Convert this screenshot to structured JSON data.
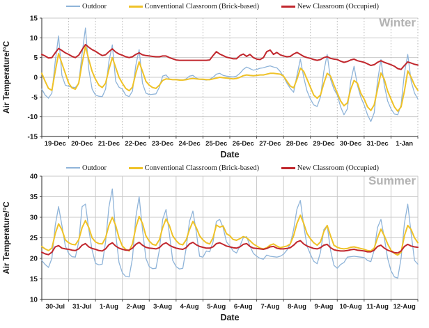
{
  "chart_data": [
    {
      "type": "line",
      "panel": "winter",
      "watermark": "Winter",
      "xlabel": "Date",
      "ylabel": "Air Temperature/°C",
      "ylim": [
        -15,
        15
      ],
      "yticks": [
        15,
        10,
        5,
        0,
        -5,
        -10,
        -15
      ],
      "grid_vertical": "dotted",
      "legend_position": "top",
      "points_per_day": 8,
      "categories": [
        "19-Dec",
        "20-Dec",
        "21-Dec",
        "22-Dec",
        "23-Dec",
        "24-Dec",
        "25-Dec",
        "26-Dec",
        "27-Dec",
        "28-Dec",
        "29-Dec",
        "30-Dec",
        "31-Dec",
        "1-Jan"
      ],
      "series": [
        {
          "name": "Outdoor",
          "color": "#8FB4D9",
          "values": [
            [
              -3.0,
              -4.5,
              -5.3,
              -4.0,
              4.0,
              10.5,
              0.5,
              -2.0
            ],
            [
              -2.3,
              -2.5,
              -2.6,
              -1.5,
              6.0,
              12.5,
              2.0,
              -3.0
            ],
            [
              -4.5,
              -4.8,
              -4.9,
              -3.0,
              4.0,
              8.2,
              -1.0,
              -2.5
            ],
            [
              -3.0,
              -4.5,
              -4.9,
              -3.5,
              3.0,
              7.0,
              -1.5,
              -4.0
            ],
            [
              -4.4,
              -4.3,
              -4.2,
              -2.5,
              0.3,
              0.6,
              -0.4,
              -0.6
            ],
            [
              -0.5,
              -0.6,
              -0.7,
              -0.4,
              0.3,
              0.5,
              -0.2,
              -0.5
            ],
            [
              -0.6,
              -0.7,
              -0.5,
              0.0,
              0.8,
              1.0,
              0.5,
              0.3
            ],
            [
              0.2,
              0.1,
              0.3,
              1.0,
              2.0,
              2.6,
              2.2,
              1.8
            ],
            [
              2.0,
              2.3,
              2.4,
              2.7,
              2.9,
              2.6,
              2.4,
              1.5
            ],
            [
              0.2,
              -1.5,
              -2.8,
              -3.8,
              0.5,
              4.6,
              0.0,
              -3.5
            ],
            [
              -5.5,
              -7.0,
              -7.4,
              -5.0,
              1.5,
              5.8,
              -0.5,
              -3.0
            ],
            [
              -4.5,
              -7.5,
              -9.5,
              -8.0,
              -1.0,
              2.8,
              -2.0,
              -5.0
            ],
            [
              -7.0,
              -9.5,
              -11.2,
              -9.0,
              -1.0,
              4.5,
              -2.0,
              -6.0
            ],
            [
              -8.0,
              -9.3,
              -9.5,
              -7.0,
              1.0,
              5.8,
              -1.0,
              -4.0
            ],
            [
              -5.5
            ]
          ]
        },
        {
          "name": "Conventional Classroom (Brick-based)",
          "color": "#EFC228",
          "values": [
            [
              1.0,
              -1.0,
              -2.8,
              -3.3,
              1.5,
              6.0,
              3.5,
              1.0
            ],
            [
              -1.5,
              -2.7,
              -3.0,
              -1.5,
              3.5,
              7.8,
              4.5,
              1.5
            ],
            [
              -0.5,
              -2.0,
              -2.6,
              -1.5,
              2.0,
              5.0,
              2.5,
              0.0
            ],
            [
              -1.5,
              -2.8,
              -3.4,
              -2.5,
              1.0,
              3.9,
              1.5,
              -1.0
            ],
            [
              -2.0,
              -2.6,
              -2.8,
              -2.0,
              -0.8,
              -0.4,
              -0.5,
              -0.6
            ],
            [
              -0.6,
              -0.7,
              -0.7,
              -0.6,
              -0.4,
              -0.3,
              -0.4,
              -0.5
            ],
            [
              -0.5,
              -0.6,
              -0.6,
              -0.4,
              -0.2,
              0.0,
              -0.1,
              -0.2
            ],
            [
              -0.3,
              -0.4,
              -0.3,
              0.0,
              0.4,
              0.6,
              0.5,
              0.4
            ],
            [
              0.5,
              0.6,
              0.6,
              0.8,
              1.0,
              1.0,
              0.9,
              0.8
            ],
            [
              0.3,
              -1.0,
              -2.2,
              -2.7,
              -0.5,
              2.3,
              1.5,
              -0.5
            ],
            [
              -2.5,
              -4.5,
              -5.3,
              -4.5,
              -1.5,
              1.0,
              0.3,
              -2.0
            ],
            [
              -4.0,
              -6.0,
              -7.2,
              -6.5,
              -3.0,
              -0.8,
              -1.5,
              -4.0
            ],
            [
              -5.5,
              -7.5,
              -8.4,
              -7.0,
              -3.0,
              1.1,
              -0.5,
              -3.5
            ],
            [
              -5.5,
              -7.5,
              -8.6,
              -7.5,
              -3.5,
              1.6,
              0.0,
              -2.0
            ],
            [
              -3.3
            ]
          ]
        },
        {
          "name": "New Classroom (Occupied)",
          "color": "#C1272D",
          "values": [
            [
              5.8,
              5.4,
              4.9,
              5.0,
              6.2,
              7.3,
              6.8,
              6.2
            ],
            [
              5.8,
              5.3,
              5.0,
              5.6,
              7.0,
              8.3,
              7.6,
              7.0
            ],
            [
              6.6,
              6.0,
              5.5,
              5.7,
              6.5,
              7.2,
              6.4,
              5.9
            ],
            [
              5.6,
              5.2,
              5.0,
              5.2,
              5.8,
              6.2,
              5.7,
              5.5
            ],
            [
              5.4,
              5.3,
              5.2,
              5.2,
              5.4,
              5.4,
              5.0,
              4.7
            ],
            [
              4.4,
              4.3,
              4.3,
              4.3,
              4.3,
              4.3,
              4.3,
              4.3
            ],
            [
              4.3,
              4.3,
              4.4,
              5.5,
              6.5,
              5.9,
              5.5,
              5.1
            ],
            [
              4.9,
              4.7,
              4.7,
              5.5,
              5.9,
              5.3,
              5.8,
              5.0
            ],
            [
              4.6,
              4.5,
              5.0,
              6.5,
              6.9,
              5.8,
              6.3,
              5.7
            ],
            [
              5.4,
              5.2,
              5.3,
              5.9,
              6.3,
              5.8,
              5.3,
              5.0
            ],
            [
              4.8,
              4.5,
              4.3,
              4.5,
              5.0,
              5.2,
              4.8,
              4.6
            ],
            [
              4.5,
              4.1,
              3.8,
              4.0,
              4.4,
              4.6,
              4.2,
              4.0
            ],
            [
              3.8,
              3.4,
              3.0,
              3.2,
              3.8,
              4.2,
              3.8,
              3.5
            ],
            [
              3.2,
              2.8,
              2.2,
              2.0,
              3.0,
              3.9,
              3.6,
              3.3
            ],
            [
              3.1
            ]
          ]
        }
      ]
    },
    {
      "type": "line",
      "panel": "summer",
      "watermark": "Summer",
      "xlabel": "Date",
      "ylabel": "Air Temperature/°C",
      "ylim": [
        10,
        40
      ],
      "yticks": [
        40,
        35,
        30,
        25,
        20,
        15,
        10
      ],
      "grid_vertical": "solid",
      "legend_position": "top",
      "points_per_day": 8,
      "categories": [
        "30-Jul",
        "31-Jul",
        "1-Aug",
        "2-Aug",
        "3-Aug",
        "4-Aug",
        "5-Aug",
        "6-Aug",
        "7-Aug",
        "8-Aug",
        "9-Aug",
        "10-Aug",
        "11-Aug",
        "12-Aug"
      ],
      "series": [
        {
          "name": "Outdoor",
          "color": "#8FB4D9",
          "values": [
            [
              19.5,
              18.5,
              17.8,
              20.0,
              28.0,
              32.6,
              28.0,
              23.0
            ],
            [
              21.2,
              20.4,
              20.3,
              24.0,
              32.6,
              33.2,
              27.0,
              22.0
            ],
            [
              18.8,
              18.4,
              18.6,
              24.0,
              32.5,
              36.9,
              26.0,
              19.0
            ],
            [
              16.5,
              15.6,
              15.5,
              20.0,
              30.0,
              35.0,
              27.0,
              20.0
            ],
            [
              18.0,
              17.5,
              17.6,
              22.0,
              29.5,
              31.9,
              26.0,
              19.5
            ],
            [
              18.0,
              17.4,
              17.6,
              22.5,
              29.0,
              31.5,
              26.5,
              20.5
            ],
            [
              20.3,
              21.8,
              21.6,
              24.0,
              29.0,
              29.5,
              27.5,
              24.0
            ],
            [
              23.0,
              21.8,
              21.3,
              23.0,
              25.0,
              25.3,
              23.0,
              21.2
            ],
            [
              20.5,
              20.0,
              19.8,
              20.8,
              20.5,
              20.4,
              20.3,
              20.5
            ],
            [
              21.0,
              22.0,
              23.5,
              27.0,
              32.0,
              34.1,
              28.0,
              23.0
            ],
            [
              21.0,
              19.3,
              18.7,
              21.5,
              27.0,
              28.0,
              22.0,
              18.3
            ],
            [
              17.6,
              18.5,
              19.0,
              20.3,
              20.4,
              20.5,
              20.4,
              20.3
            ],
            [
              20.2,
              19.5,
              19.2,
              22.0,
              27.5,
              29.5,
              25.0,
              20.0
            ],
            [
              17.0,
              15.5,
              15.2,
              20.0,
              28.5,
              33.2,
              26.0,
              19.5
            ],
            [
              18.6
            ]
          ]
        },
        {
          "name": "Conventional Classroom (Brick-based)",
          "color": "#EFC228",
          "values": [
            [
              22.9,
              22.3,
              21.9,
              22.5,
              26.0,
              28.4,
              27.0,
              24.5
            ],
            [
              23.8,
              23.4,
              23.3,
              24.5,
              27.5,
              29.2,
              27.5,
              25.0
            ],
            [
              24.0,
              23.6,
              23.5,
              25.0,
              28.0,
              30.0,
              28.0,
              25.0
            ],
            [
              23.0,
              22.2,
              21.8,
              23.5,
              27.5,
              30.2,
              28.5,
              25.5
            ],
            [
              24.2,
              23.4,
              23.2,
              24.5,
              27.5,
              29.6,
              28.0,
              25.5
            ],
            [
              24.3,
              23.5,
              23.3,
              24.5,
              27.0,
              29.0,
              27.5,
              25.5
            ],
            [
              24.5,
              23.8,
              23.5,
              25.0,
              28.1,
              27.6,
              27.9,
              26.0
            ],
            [
              25.5,
              24.6,
              24.4,
              24.8,
              25.3,
              25.0,
              24.3,
              23.5
            ],
            [
              23.0,
              22.5,
              22.3,
              22.6,
              23.2,
              23.5,
              23.0,
              22.6
            ],
            [
              22.8,
              23.0,
              23.5,
              25.5,
              28.5,
              30.5,
              28.5,
              26.0
            ],
            [
              24.8,
              23.8,
              23.2,
              24.0,
              26.5,
              28.0,
              25.5,
              23.2
            ],
            [
              22.7,
              22.4,
              22.3,
              22.4,
              22.7,
              22.8,
              22.6,
              22.4
            ],
            [
              22.2,
              21.9,
              21.8,
              22.5,
              25.0,
              27.1,
              25.5,
              23.5
            ],
            [
              22.0,
              21.2,
              20.8,
              21.5,
              25.5,
              28.0,
              27.0,
              25.0
            ],
            [
              23.8
            ]
          ]
        },
        {
          "name": "New Classroom (Occupied)",
          "color": "#C1272D",
          "values": [
            [
              21.5,
              21.1,
              20.9,
              21.5,
              22.8,
              23.1,
              22.5,
              22.3
            ],
            [
              22.2,
              22.0,
              21.9,
              22.3,
              23.2,
              23.6,
              22.8,
              22.4
            ],
            [
              22.2,
              21.9,
              21.8,
              22.3,
              23.3,
              23.8,
              23.0,
              22.5
            ],
            [
              22.2,
              22.0,
              22.0,
              22.5,
              23.4,
              23.9,
              23.2,
              22.7
            ],
            [
              22.5,
              22.4,
              22.3,
              22.6,
              23.4,
              23.8,
              23.2,
              22.8
            ],
            [
              22.5,
              22.3,
              22.2,
              22.6,
              23.5,
              23.9,
              23.3,
              22.9
            ],
            [
              22.7,
              22.5,
              22.5,
              22.8,
              23.6,
              23.8,
              23.4,
              23.0
            ],
            [
              22.8,
              22.6,
              22.5,
              22.8,
              23.4,
              23.6,
              22.9,
              22.5
            ],
            [
              22.4,
              22.3,
              22.2,
              22.4,
              22.8,
              22.9,
              22.5,
              22.3
            ],
            [
              22.3,
              22.4,
              22.6,
              23.2,
              24.0,
              24.3,
              23.5,
              23.0
            ],
            [
              22.7,
              22.4,
              22.3,
              22.6,
              23.2,
              23.4,
              22.6,
              22.1
            ],
            [
              21.9,
              21.8,
              21.8,
              21.9,
              22.1,
              22.2,
              22.0,
              21.9
            ],
            [
              21.8,
              21.6,
              21.6,
              22.0,
              22.9,
              23.2,
              22.5,
              22.0
            ],
            [
              21.7,
              21.4,
              21.3,
              21.8,
              22.9,
              23.4,
              23.0,
              22.8
            ],
            [
              22.7
            ]
          ]
        }
      ]
    }
  ],
  "styles": {
    "grid_color": "#c9c9c9",
    "axis_color": "#4a4a4a",
    "tick_text_color": "#1a1a1a",
    "watermark_color": "#b3b3b3"
  }
}
